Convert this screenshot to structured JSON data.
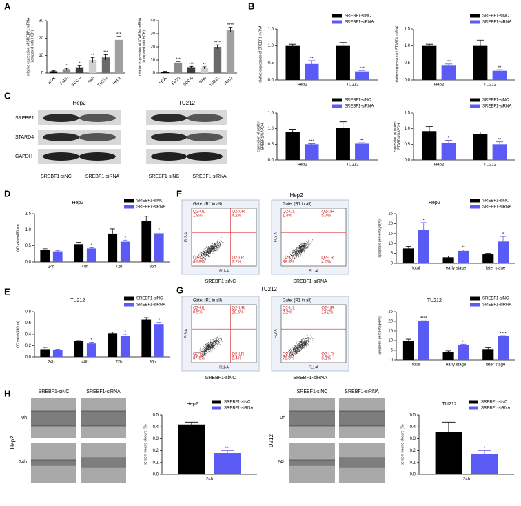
{
  "panel_labels": [
    "A",
    "B",
    "C",
    "D",
    "E",
    "F",
    "G",
    "H"
  ],
  "western_blot": {
    "cell_lines": [
      "Hep2",
      "TU212"
    ],
    "proteins": [
      "SREBP1",
      "STARD4",
      "GAPDH"
    ],
    "groups": [
      "SREBF1-siNC",
      "SREBF1-siRNA"
    ]
  },
  "flow_cytometry": {
    "axis_x": "FL1-A",
    "axis_y": "FL3-A",
    "panels": [
      {
        "cell_line": "Hep2",
        "plots": [
          {
            "gate": "Gate: (R1 in all)",
            "group": "SREBF1-siNC",
            "quadrants": [
              {
                "name": "Q2-UL",
                "value": "1.8%"
              },
              {
                "name": "Q2-UR",
                "value": "4.2%"
              },
              {
                "name": "Q2-LL",
                "value": "86.8%"
              },
              {
                "name": "Q2-LR",
                "value": "7.2%"
              }
            ]
          },
          {
            "gate": "Gate: (R1 in all)",
            "group": "SREBF1-siRNA",
            "quadrants": [
              {
                "name": "Q2-UL",
                "value": "1.4%"
              },
              {
                "name": "Q2-UR",
                "value": "5.7%"
              },
              {
                "name": "Q2-LL",
                "value": "88.8%"
              },
              {
                "name": "Q2-LR",
                "value": "4.0%"
              }
            ]
          }
        ]
      },
      {
        "cell_line": "TU212",
        "plots": [
          {
            "gate": "Gate: (R1 in all)",
            "group": "SREBF1-siNC",
            "quadrants": [
              {
                "name": "Q2-UL",
                "value": "0.5%"
              },
              {
                "name": "Q2-UR",
                "value": "10.6%"
              },
              {
                "name": "Q2-LL",
                "value": "87.6%"
              },
              {
                "name": "Q2-LR",
                "value": "8.4%"
              }
            ]
          },
          {
            "gate": "Gate: (R1 in all)",
            "group": "SREBF1-siRNA",
            "quadrants": [
              {
                "name": "Q2-UL",
                "value": "2.2%"
              },
              {
                "name": "Q2-UR",
                "value": "13.2%"
              },
              {
                "name": "Q2-LL",
                "value": "78.6%"
              },
              {
                "name": "Q2-LR",
                "value": "8.1%"
              }
            ]
          }
        ]
      }
    ]
  },
  "wound": {
    "groups": [
      "SREBF1-siNC",
      "SREBF1-siRNA"
    ],
    "times": [
      "0h",
      "24h"
    ],
    "cell_lines": [
      "Hep2",
      "TU212"
    ]
  },
  "chart_data": [
    {
      "type": "bar",
      "ylabel": [
        "relative expression of SREBP1 mRNA",
        "(compared with HOK)"
      ],
      "categories": [
        "HOK",
        "FaDu",
        "SCC-9",
        "SAS",
        "TU212",
        "Hep2"
      ],
      "values": [
        1,
        2.2,
        3.3,
        7.5,
        9,
        19
      ],
      "errors": [
        0.3,
        0.5,
        0.8,
        1.5,
        1.5,
        2
      ],
      "significance": [
        null,
        "*",
        "*",
        "**",
        "***",
        "***"
      ],
      "colors": [
        "#000000",
        "#8a8a8a",
        "#3c3c3c",
        "#cfcfcf",
        "#6a6a6a",
        "#a0a0a0"
      ],
      "ylim": [
        0,
        30
      ],
      "yticks": [
        0,
        10,
        20,
        30
      ]
    },
    {
      "type": "bar",
      "ylabel": [
        "relative expression of STARD4 mRNA",
        "(compared with HOK)"
      ],
      "categories": [
        "HOK",
        "FaDu",
        "SCC-9",
        "SAS",
        "TU212",
        "Hep2"
      ],
      "values": [
        1,
        8,
        4.5,
        4,
        20,
        33
      ],
      "errors": [
        0.3,
        0.8,
        0.6,
        0.8,
        1.5,
        2
      ],
      "significance": [
        null,
        "***",
        "***",
        "**",
        "****",
        "****"
      ],
      "colors": [
        "#000000",
        "#8a8a8a",
        "#3c3c3c",
        "#cfcfcf",
        "#6a6a6a",
        "#a0a0a0"
      ],
      "ylim": [
        0,
        40
      ],
      "yticks": [
        0,
        10,
        20,
        30,
        40
      ]
    },
    {
      "type": "bar",
      "ylabel": "relative expression of SREBP1 mRNA",
      "categories": [
        "Hep2",
        "TU212"
      ],
      "legend": "upper right",
      "series": [
        {
          "name": "SREBF1-siNC",
          "color": "#000000",
          "values": [
            1.0,
            1.0
          ],
          "errors": [
            0.05,
            0.1
          ]
        },
        {
          "name": "SREBF1-siRNA",
          "color": "#5a5af5",
          "values": [
            0.47,
            0.25
          ],
          "errors": [
            0.1,
            0.03
          ],
          "significance": [
            "**",
            "***"
          ]
        }
      ],
      "ylim": [
        0,
        1.5
      ],
      "yticks": [
        {
          "value": 0,
          "label": "0.0"
        },
        0.5,
        {
          "value": 1,
          "label": "1.0"
        },
        1.5
      ]
    },
    {
      "type": "bar",
      "ylabel": "relative expression of STARD4 mRNA",
      "categories": [
        "Hep2",
        "TU212"
      ],
      "legend": "upper right",
      "series": [
        {
          "name": "SREBF1-siNC",
          "color": "#000000",
          "values": [
            1.0,
            1.0
          ],
          "errors": [
            0.05,
            0.17
          ]
        },
        {
          "name": "SREBF1-siRNA",
          "color": "#5a5af5",
          "values": [
            0.42,
            0.27
          ],
          "errors": [
            0.05,
            0.03
          ],
          "significance": [
            "***",
            "**"
          ]
        }
      ],
      "ylim": [
        0,
        1.5
      ],
      "yticks": [
        {
          "value": 0,
          "label": "0.0"
        },
        0.5,
        {
          "value": 1,
          "label": "1.0"
        },
        1.5
      ]
    },
    {
      "type": "bar",
      "ylabel": [
        "expression of protein",
        "SREBP1/GAPDH"
      ],
      "categories": [
        "Hep2",
        "TU212"
      ],
      "legend": "upper right",
      "series": [
        {
          "name": "SREBF1-siNC",
          "color": "#000000",
          "values": [
            0.9,
            1.02
          ],
          "errors": [
            0.08,
            0.2
          ]
        },
        {
          "name": "SREBF1-siRNA",
          "color": "#5a5af5",
          "values": [
            0.5,
            0.52
          ],
          "errors": [
            0.02,
            0.03
          ],
          "significance": [
            "***",
            "**"
          ]
        }
      ],
      "ylim": [
        0,
        1.5
      ],
      "yticks": [
        {
          "value": 0,
          "label": "0.0"
        },
        0.5,
        {
          "value": 1,
          "label": "1.0"
        },
        1.5
      ]
    },
    {
      "type": "bar",
      "ylabel": [
        "expression of protein",
        "STARD4/GAPDH"
      ],
      "categories": [
        "Hep2",
        "TU212"
      ],
      "legend": "upper right",
      "series": [
        {
          "name": "SREBF1-siNC",
          "color": "#000000",
          "values": [
            0.92,
            0.82
          ],
          "errors": [
            0.15,
            0.07
          ]
        },
        {
          "name": "SREBF1-siRNA",
          "color": "#5a5af5",
          "values": [
            0.55,
            0.5
          ],
          "errors": [
            0.08,
            0.08
          ],
          "significance": [
            "*",
            "**"
          ]
        }
      ],
      "ylim": [
        0,
        1.5
      ],
      "yticks": [
        {
          "value": 0,
          "label": "0.0"
        },
        0.5,
        {
          "value": 1,
          "label": "1.0"
        },
        1.5
      ]
    },
    {
      "type": "bar",
      "title": "Hep2",
      "ylabel": "OD value(450nm)",
      "categories": [
        "24h",
        "48h",
        "72h",
        "96h"
      ],
      "legend": "upper right",
      "series": [
        {
          "name": "SREBF1-siNC",
          "color": "#000000",
          "values": [
            0.37,
            0.55,
            0.88,
            1.27
          ],
          "errors": [
            0.04,
            0.06,
            0.15,
            0.15
          ]
        },
        {
          "name": "SREBF1-siRNA",
          "color": "#5a5af5",
          "values": [
            0.33,
            0.42,
            0.63,
            0.89
          ],
          "errors": [
            0.03,
            0.02,
            0.05,
            0.04
          ],
          "significance": [
            null,
            "*",
            "*",
            "*"
          ]
        }
      ],
      "ylim": [
        0,
        1.5
      ],
      "yticks": [
        {
          "value": 0,
          "label": "0.0"
        },
        0.5,
        {
          "value": 1,
          "label": "1.0"
        },
        1.5
      ]
    },
    {
      "type": "bar",
      "title": "TU212",
      "ylabel": "OD value(450nm)",
      "categories": [
        "24h",
        "48h",
        "72h",
        "96h"
      ],
      "legend": "upper right",
      "series": [
        {
          "name": "SREBF1-siNC",
          "color": "#000000",
          "values": [
            0.14,
            0.28,
            0.42,
            0.66
          ],
          "errors": [
            0.03,
            0.01,
            0.02,
            0.03
          ]
        },
        {
          "name": "SREBF1-siRNA",
          "color": "#5a5af5",
          "values": [
            0.13,
            0.24,
            0.37,
            0.58
          ],
          "errors": [
            0.01,
            0.02,
            0.03,
            0.03
          ],
          "significance": [
            null,
            "*",
            "*",
            "*"
          ]
        }
      ],
      "ylim": [
        0,
        0.8
      ],
      "yticks": [
        {
          "value": 0,
          "label": "0.0"
        },
        0.2,
        0.4,
        0.6,
        0.8
      ]
    },
    {
      "type": "bar",
      "title": "Hep2",
      "ylabel": "apoptosis percentage(%)",
      "categories": [
        "total",
        "early stage",
        "later stage"
      ],
      "legend": "upper right",
      "series": [
        {
          "name": "SREBF1-siNC",
          "color": "#000000",
          "values": [
            7.5,
            3,
            4.5
          ],
          "errors": [
            1,
            0.7,
            0.5
          ]
        },
        {
          "name": "SREBF1-siRNA",
          "color": "#5a5af5",
          "values": [
            17,
            6.3,
            11
          ],
          "errors": [
            3.5,
            0.5,
            2.5
          ],
          "significance": [
            "*",
            "**",
            "*"
          ]
        }
      ],
      "ylim": [
        0,
        25
      ],
      "yticks": [
        0,
        5,
        10,
        15,
        20,
        25
      ]
    },
    {
      "type": "bar",
      "title": "TU212",
      "ylabel": "apoptosis percentage(%)",
      "categories": [
        "total",
        "early stage",
        "later stage"
      ],
      "legend": "upper right",
      "series": [
        {
          "name": "SREBF1-siNC",
          "color": "#000000",
          "values": [
            9.7,
            4.2,
            5.6
          ],
          "errors": [
            1,
            0.5,
            0.6
          ]
        },
        {
          "name": "SREBF1-siRNA",
          "color": "#5a5af5",
          "values": [
            20,
            7.7,
            12.2
          ],
          "errors": [
            0.3,
            0.4,
            0.3
          ],
          "significance": [
            "****",
            "**",
            "****"
          ]
        }
      ],
      "ylim": [
        0,
        25
      ],
      "yticks": [
        0,
        5,
        10,
        15,
        20,
        25
      ]
    },
    {
      "type": "bar",
      "title": "Hep2",
      "ylabel": "percent wound closure (%)",
      "categories": [
        "24h"
      ],
      "legend": "upper right",
      "series": [
        {
          "name": "SREBF1-siNC",
          "color": "#000000",
          "values": [
            0.42
          ],
          "errors": [
            0.02
          ]
        },
        {
          "name": "SREBF1-siRNA",
          "color": "#5a5af5",
          "values": [
            0.18
          ],
          "errors": [
            0.02
          ],
          "significance": [
            "***"
          ]
        }
      ],
      "ylim": [
        0,
        0.5
      ],
      "yticks": [
        {
          "value": 0,
          "label": "0.0"
        },
        0.1,
        0.2,
        0.3,
        0.4,
        0.5
      ]
    },
    {
      "type": "bar",
      "title": "TU212",
      "ylabel": "percent wound closure (%)",
      "categories": [
        "24h"
      ],
      "legend": "upper right",
      "series": [
        {
          "name": "SREBF1-siNC",
          "color": "#000000",
          "values": [
            0.36
          ],
          "errors": [
            0.08
          ]
        },
        {
          "name": "SREBF1-siRNA",
          "color": "#5a5af5",
          "values": [
            0.17
          ],
          "errors": [
            0.03
          ],
          "significance": [
            "*"
          ]
        }
      ],
      "ylim": [
        0,
        0.5
      ],
      "yticks": [
        {
          "value": 0,
          "label": "0.0"
        },
        0.1,
        0.2,
        0.3,
        0.4,
        0.5
      ]
    }
  ]
}
